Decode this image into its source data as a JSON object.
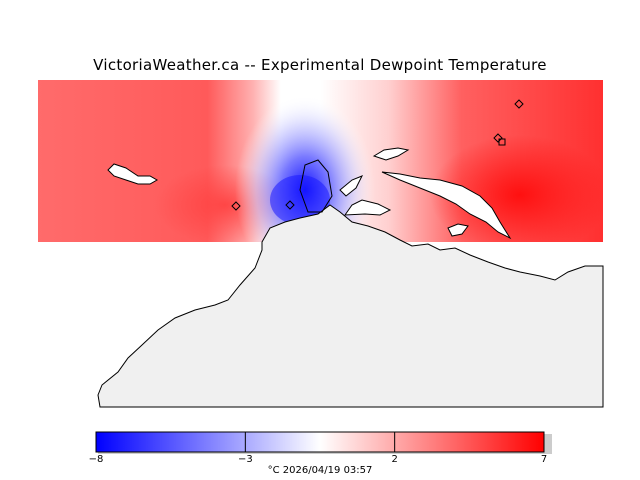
{
  "header": {
    "title": "VictoriaWeather.ca -- Experimental Dewpoint Temperature"
  },
  "colorbar": {
    "min": -8,
    "max": 7,
    "tick_values": [
      -8,
      -3,
      2,
      7
    ],
    "tick_labels": [
      "−8",
      "−3",
      "2",
      "7"
    ],
    "caption": "°C  2026/04/19 03:57",
    "colors": {
      "cold": "#0000ff",
      "neutral": "#ffffff",
      "warm": "#ff0000"
    }
  },
  "map": {
    "land_color": "#f0f0f0",
    "field_hotspots": [
      {
        "name": "west-station",
        "value": 5
      },
      {
        "name": "central-cold",
        "value": -7
      },
      {
        "name": "east-station",
        "value": 7
      }
    ],
    "station_count": 4
  }
}
